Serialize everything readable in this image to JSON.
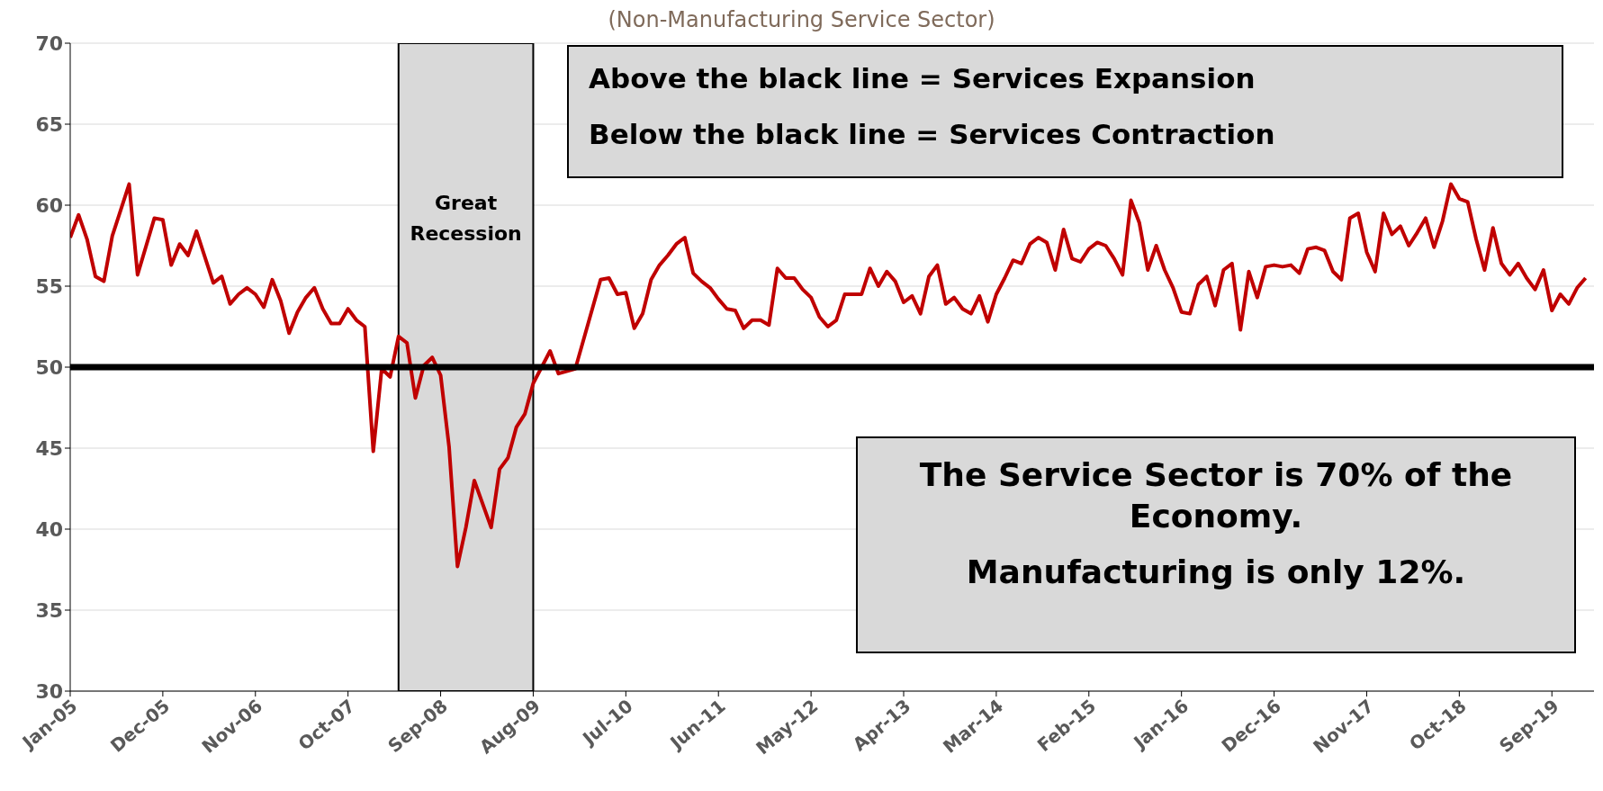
{
  "chart_data": {
    "type": "line",
    "subtitle": "(Non-Manufacturing Service Sector)",
    "x": [
      "2005-01",
      "2005-02",
      "2005-03",
      "2005-04",
      "2005-05",
      "2005-06",
      "2005-08",
      "2005-09",
      "2005-11",
      "2005-12",
      "2006-01",
      "2006-02",
      "2006-03",
      "2006-04",
      "2006-06",
      "2006-07",
      "2006-08",
      "2006-09",
      "2006-10",
      "2006-11",
      "2006-12",
      "2007-01",
      "2007-02",
      "2007-03",
      "2007-04",
      "2007-05",
      "2007-06",
      "2007-07",
      "2007-08",
      "2007-09",
      "2007-10",
      "2007-11",
      "2007-12",
      "2008-01",
      "2008-02",
      "2008-03",
      "2008-04",
      "2008-05",
      "2008-06",
      "2008-07",
      "2008-08",
      "2008-09",
      "2008-10",
      "2008-11",
      "2008-12",
      "2009-01",
      "2009-03",
      "2009-04",
      "2009-05",
      "2009-06",
      "2009-07",
      "2009-08",
      "2009-10",
      "2009-11",
      "2010-01",
      "2010-04",
      "2010-05",
      "2010-06",
      "2010-07",
      "2010-08",
      "2010-09",
      "2010-10",
      "2010-11",
      "2010-12",
      "2011-01",
      "2011-02",
      "2011-03",
      "2011-04",
      "2011-05",
      "2011-06",
      "2011-07",
      "2011-08",
      "2011-09",
      "2011-10",
      "2011-11",
      "2011-12",
      "2012-01",
      "2012-02",
      "2012-03",
      "2012-04",
      "2012-05",
      "2012-06",
      "2012-07",
      "2012-08",
      "2012-09",
      "2012-10",
      "2012-11",
      "2012-12",
      "2013-01",
      "2013-02",
      "2013-03",
      "2013-04",
      "2013-05",
      "2013-06",
      "2013-07",
      "2013-08",
      "2013-09",
      "2013-10",
      "2013-11",
      "2013-12",
      "2014-01",
      "2014-02",
      "2014-03",
      "2014-04",
      "2014-05",
      "2014-06",
      "2014-07",
      "2014-08",
      "2014-09",
      "2014-10",
      "2014-11",
      "2014-12",
      "2015-01",
      "2015-02",
      "2015-03",
      "2015-04",
      "2015-05",
      "2015-06",
      "2015-07",
      "2015-08",
      "2015-09",
      "2015-10",
      "2015-11",
      "2015-12",
      "2016-01",
      "2016-02",
      "2016-03",
      "2016-04",
      "2016-05",
      "2016-06",
      "2016-07",
      "2016-08",
      "2016-09",
      "2016-10",
      "2016-11",
      "2016-12",
      "2017-01",
      "2017-02",
      "2017-03",
      "2017-04",
      "2017-05",
      "2017-06",
      "2017-07",
      "2017-08",
      "2017-09",
      "2017-10",
      "2017-11",
      "2017-12",
      "2018-01",
      "2018-02",
      "2018-03",
      "2018-04",
      "2018-05",
      "2018-06",
      "2018-07",
      "2018-08",
      "2018-09",
      "2018-10",
      "2018-11",
      "2018-12",
      "2019-01",
      "2019-02",
      "2019-03",
      "2019-04",
      "2019-05",
      "2019-06",
      "2019-07",
      "2019-08",
      "2019-09",
      "2019-10",
      "2019-11",
      "2019-12",
      "2020-01"
    ],
    "series": [
      {
        "color": "#c00000",
        "values": [
          58.0,
          59.4,
          57.9,
          55.6,
          55.3,
          58.1,
          61.3,
          55.7,
          59.2,
          59.1,
          56.3,
          57.6,
          56.9,
          58.4,
          55.2,
          55.6,
          53.9,
          54.5,
          54.9,
          54.5,
          53.7,
          55.4,
          54.1,
          52.1,
          53.4,
          54.3,
          54.9,
          53.6,
          52.7,
          52.7,
          53.6,
          52.9,
          52.5,
          44.8,
          49.9,
          49.4,
          51.9,
          51.5,
          48.1,
          50.1,
          50.6,
          49.5,
          45.1,
          37.7,
          40.1,
          43.0,
          40.1,
          43.7,
          44.4,
          46.3,
          47.1,
          49.0,
          51.0,
          49.6,
          49.9,
          55.4,
          55.5,
          54.5,
          54.6,
          52.4,
          53.3,
          55.4,
          56.3,
          56.9,
          57.6,
          58.0,
          55.8,
          55.3,
          54.9,
          54.2,
          53.6,
          53.5,
          52.4,
          52.9,
          52.9,
          52.6,
          56.1,
          55.5,
          55.5,
          54.8,
          54.3,
          53.1,
          52.5,
          52.9,
          54.5,
          54.5,
          54.5,
          56.1,
          55.0,
          55.9,
          55.3,
          54.0,
          54.4,
          53.3,
          55.6,
          56.3,
          53.9,
          54.3,
          53.6,
          53.3,
          54.4,
          52.8,
          54.5,
          55.5,
          56.6,
          56.4,
          57.6,
          58.0,
          57.7,
          56.0,
          58.5,
          56.7,
          56.5,
          57.3,
          57.7,
          57.5,
          56.7,
          55.7,
          60.3,
          58.9,
          56.0,
          57.5,
          56.0,
          54.9,
          53.4,
          53.3,
          55.1,
          55.6,
          53.8,
          56.0,
          56.4,
          52.3,
          55.9,
          54.3,
          56.2,
          56.3,
          56.2,
          56.3,
          55.8,
          57.3,
          57.4,
          57.2,
          55.9,
          55.4,
          59.2,
          59.5,
          57.1,
          55.9,
          59.5,
          58.2,
          58.7,
          57.5,
          58.3,
          59.2,
          57.4,
          59.0,
          61.3,
          60.4,
          60.2,
          57.9,
          56.0,
          58.6,
          56.4,
          55.7,
          56.4,
          55.5,
          54.8,
          56.0,
          53.5,
          54.5,
          53.9,
          54.9,
          55.5
        ]
      }
    ],
    "xlim": [
      "2005-01",
      "2020-02"
    ],
    "xticks": [
      {
        "value": "2005-01",
        "label": "Jan-05"
      },
      {
        "value": "2005-12",
        "label": "Dec-05"
      },
      {
        "value": "2006-11",
        "label": "Nov-06"
      },
      {
        "value": "2007-10",
        "label": "Oct-07"
      },
      {
        "value": "2008-09",
        "label": "Sep-08"
      },
      {
        "value": "2009-08",
        "label": "Aug-09"
      },
      {
        "value": "2010-07",
        "label": "Jul-10"
      },
      {
        "value": "2011-06",
        "label": "Jun-11"
      },
      {
        "value": "2012-05",
        "label": "May-12"
      },
      {
        "value": "2013-04",
        "label": "Apr-13"
      },
      {
        "value": "2014-03",
        "label": "Mar-14"
      },
      {
        "value": "2015-02",
        "label": "Feb-15"
      },
      {
        "value": "2016-01",
        "label": "Jan-16"
      },
      {
        "value": "2016-12",
        "label": "Dec-16"
      },
      {
        "value": "2017-11",
        "label": "Nov-17"
      },
      {
        "value": "2018-10",
        "label": "Oct-18"
      },
      {
        "value": "2019-09",
        "label": "Sep-19"
      }
    ],
    "ylim": [
      30,
      70
    ],
    "yticks": [
      30,
      35,
      40,
      45,
      50,
      55,
      60,
      65,
      70
    ],
    "grid": "y",
    "marker": "none",
    "line_style": "solid",
    "ref_lines": [
      {
        "axis": "y",
        "value": 50,
        "color": "#000000"
      }
    ],
    "bands": [
      {
        "axis": "x",
        "from": "2008-04",
        "to": "2009-08",
        "label": "Great Recession",
        "color": "#d9d9d9"
      }
    ],
    "annotations": [
      "Above the black line = Services Expansion",
      "Below the black line = Services Contraction",
      "The Service Sector is 70% of the Economy.",
      "Manufacturing is only 12%."
    ]
  }
}
